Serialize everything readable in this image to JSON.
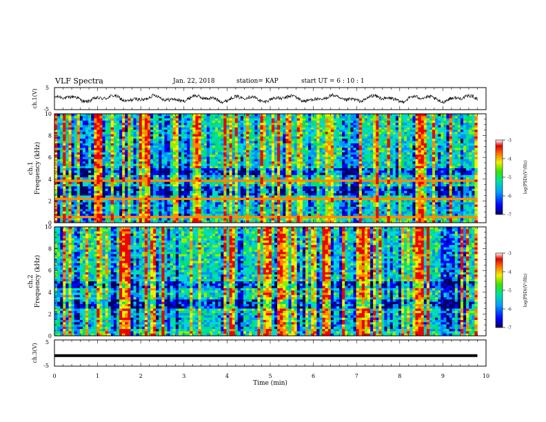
{
  "header": {
    "title": "VLF Spectra",
    "date": "Jan. 22, 2018",
    "station": "station= KAP",
    "start": "start  UT =  6 : 10 : 1"
  },
  "chart_data": [
    {
      "type": "line",
      "id": "ch1-waveform",
      "ylabel": "ch.1(V)",
      "ylim": [
        -5,
        5
      ],
      "yticks": [
        "5",
        "-5"
      ],
      "xlim": [
        0,
        10
      ],
      "series": [
        {
          "description_free": true,
          "values_note": "",
          "amplitude_range": [
            -2.5,
            2.5
          ],
          "mean": 0
        }
      ]
    },
    {
      "type": "heatmap",
      "id": "ch1-spectrogram",
      "ylabel": "ch.1\nFrequency (kHz)",
      "ylabel_line1": "ch.1",
      "ylabel_line2": "Frequency (kHz)",
      "ylim": [
        0,
        10
      ],
      "yticks": [
        "0",
        "2",
        "4",
        "6",
        "8",
        "10"
      ],
      "xlim": [
        0,
        10
      ],
      "data_end_min": 9.8,
      "strong_lines_khz": [
        3.8,
        2.1,
        0.5
      ],
      "colorbar": {
        "label": "log(PSD)(V²/Hz)",
        "min": -7,
        "max": -3,
        "ticks": [
          "-3",
          "-4",
          "-5",
          "-6",
          "-7"
        ]
      }
    },
    {
      "type": "heatmap",
      "id": "ch2-spectrogram",
      "ylabel_line1": "ch.2",
      "ylabel_line2": "Frequency (kHz)",
      "ylim": [
        0,
        10
      ],
      "yticks": [
        "0",
        "2",
        "4",
        "6",
        "8",
        "10"
      ],
      "xlim": [
        0,
        10
      ],
      "data_end_min": 9.8,
      "colorbar": {
        "label": "log(PSD)(V²/Hz)",
        "min": -7,
        "max": -3,
        "ticks": [
          "-3",
          "-4",
          "-5",
          "-6",
          "-7"
        ]
      }
    },
    {
      "type": "line",
      "id": "ch3-waveform",
      "ylabel": "ch.3(V)",
      "ylim": [
        -5,
        5
      ],
      "yticks": [
        "5",
        "-5"
      ],
      "xlim": [
        0,
        10
      ],
      "series": [
        {
          "values": [
            -1,
            -1
          ]
        }
      ]
    }
  ],
  "xaxis": {
    "label": "Time  (min)",
    "ticks": [
      "0",
      "1",
      "2",
      "3",
      "4",
      "5",
      "6",
      "7",
      "8",
      "9",
      "10"
    ]
  },
  "colors": {
    "colormap": [
      "#000060",
      "#0000ff",
      "#0090ff",
      "#00d8d8",
      "#00e070",
      "#90ee00",
      "#f0f000",
      "#ff8800",
      "#ee0000",
      "#ffffff"
    ]
  }
}
